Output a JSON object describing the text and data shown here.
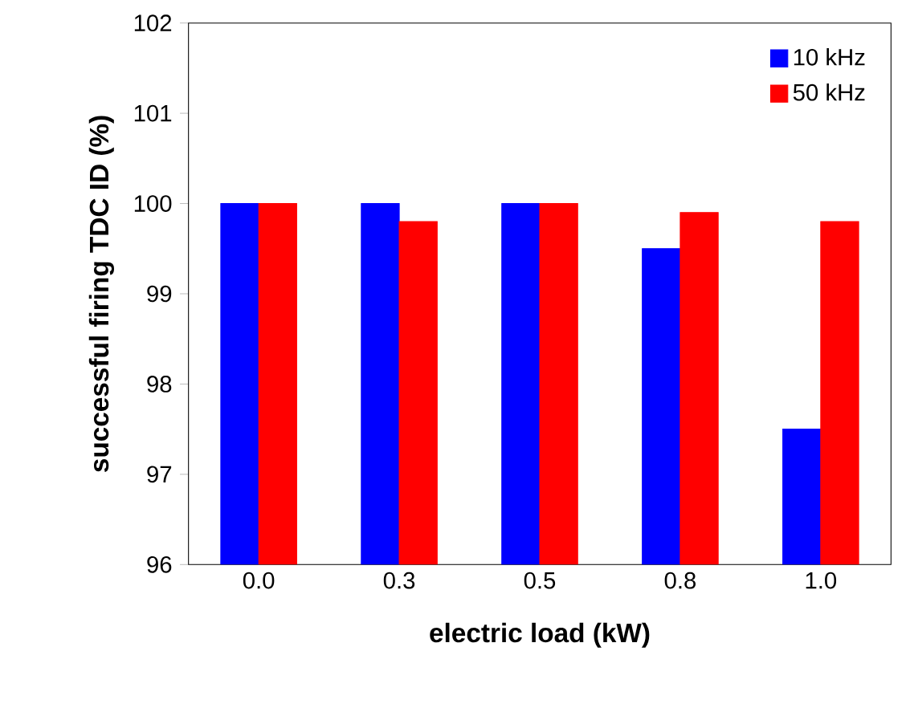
{
  "chart_data": {
    "type": "bar",
    "xlabel": "electric load (kW)",
    "ylabel": "successful firing TDC ID (%)",
    "categories": [
      "0.0",
      "0.3",
      "0.5",
      "0.8",
      "1.0"
    ],
    "series": [
      {
        "name": "10 kHz",
        "color": "#0000ff",
        "values": [
          100,
          100,
          100,
          99.5,
          97.5
        ]
      },
      {
        "name": "50 kHz",
        "color": "#ff0000",
        "values": [
          100,
          99.8,
          100,
          99.9,
          99.8
        ]
      }
    ],
    "ylim": [
      96,
      102
    ],
    "yticks": [
      96,
      97,
      98,
      99,
      100,
      101,
      102
    ],
    "grid": false,
    "legend": "top right"
  }
}
